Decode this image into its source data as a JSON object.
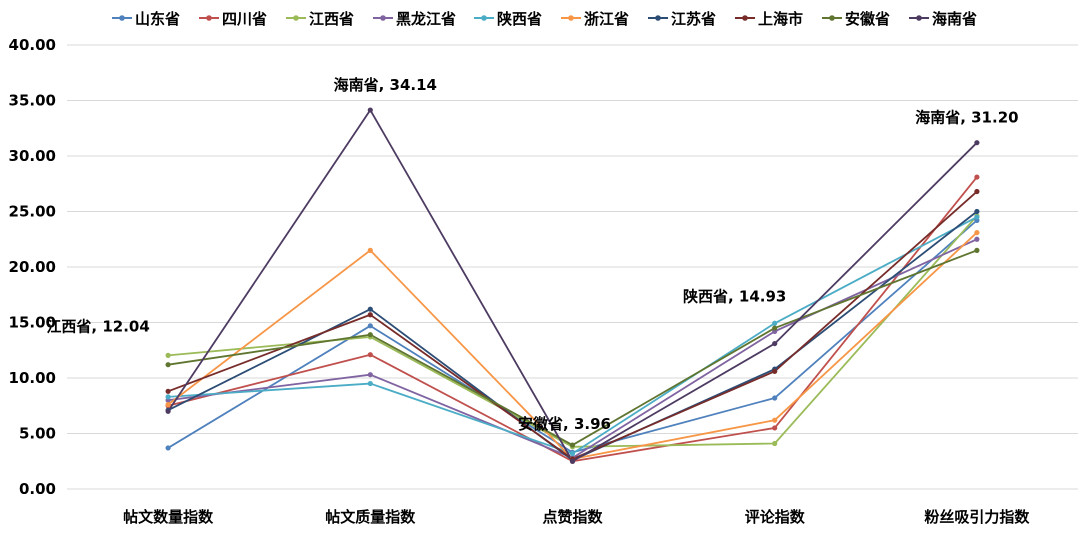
{
  "chart_data": {
    "type": "line",
    "title": "",
    "xlabel": "",
    "ylabel": "",
    "ylim": [
      0,
      40
    ],
    "yticks": [
      "0.00",
      "5.00",
      "10.00",
      "15.00",
      "20.00",
      "25.00",
      "30.00",
      "35.00",
      "40.00"
    ],
    "grid": "horizontal",
    "legend_position": "top",
    "categories": [
      "帖文数量指数",
      "帖文质量指数",
      "点赞指数",
      "评论指数",
      "粉丝吸引力指数"
    ],
    "series": [
      {
        "name": "山东省",
        "color": "#4f81bd",
        "values": [
          3.7,
          14.7,
          3.3,
          8.2,
          24.2
        ]
      },
      {
        "name": "四川省",
        "color": "#c0504d",
        "values": [
          7.5,
          12.1,
          2.5,
          5.5,
          28.1
        ]
      },
      {
        "name": "江西省",
        "color": "#9bbb59",
        "values": [
          12.04,
          13.7,
          3.8,
          4.1,
          24.6
        ]
      },
      {
        "name": "黑龙江省",
        "color": "#8064a2",
        "values": [
          8.0,
          10.3,
          2.8,
          14.2,
          22.5
        ]
      },
      {
        "name": "陕西省",
        "color": "#4bacc6",
        "values": [
          8.3,
          9.5,
          3.2,
          14.93,
          24.5
        ]
      },
      {
        "name": "浙江省",
        "color": "#f79646",
        "values": [
          7.6,
          21.5,
          2.7,
          6.2,
          23.1
        ]
      },
      {
        "name": "江苏省",
        "color": "#2c4d75",
        "values": [
          7.1,
          16.2,
          2.6,
          10.8,
          25.0
        ]
      },
      {
        "name": "上海市",
        "color": "#772c2a",
        "values": [
          8.8,
          15.7,
          2.7,
          10.6,
          26.8
        ]
      },
      {
        "name": "安徽省",
        "color": "#5f7530",
        "values": [
          11.2,
          13.9,
          3.96,
          14.5,
          21.5
        ]
      },
      {
        "name": "海南省",
        "color": "#4d3b62",
        "values": [
          7.0,
          34.14,
          2.5,
          13.1,
          31.2
        ]
      }
    ],
    "annotations": [
      {
        "series": 2,
        "category": 0,
        "text": "江西省, 12.04"
      },
      {
        "series": 9,
        "category": 1,
        "text": "海南省, 34.14"
      },
      {
        "series": 8,
        "category": 2,
        "text": "安徽省, 3.96"
      },
      {
        "series": 4,
        "category": 3,
        "text": "陕西省, 14.93"
      },
      {
        "series": 9,
        "category": 4,
        "text": "海南省, 31.20"
      }
    ]
  }
}
